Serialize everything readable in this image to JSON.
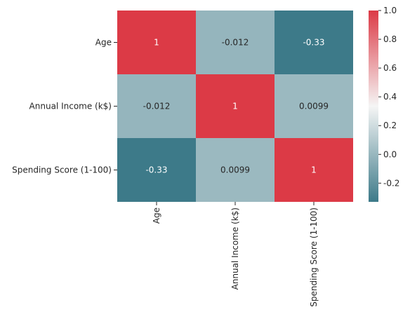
{
  "chart_data": {
    "type": "heatmap",
    "title": "",
    "rows": [
      "Age",
      "Annual Income (k$)",
      "Spending Score (1-100)"
    ],
    "columns": [
      "Age",
      "Annual Income (k$)",
      "Spending Score (1-100)"
    ],
    "values": [
      [
        1,
        -0.012,
        -0.33
      ],
      [
        -0.012,
        1,
        0.0099
      ],
      [
        -0.33,
        0.0099,
        1
      ]
    ],
    "cell_labels": [
      [
        "1",
        "-0.012",
        "-0.33"
      ],
      [
        "-0.012",
        "1",
        "0.0099"
      ],
      [
        "-0.33",
        "0.0099",
        "1"
      ]
    ],
    "colorbar": {
      "range": [
        -0.33,
        1
      ],
      "ticks": [
        -0.2,
        0.0,
        0.2,
        0.4,
        0.6,
        0.8,
        1.0
      ],
      "tick_labels": [
        "-0.2",
        "0.0",
        "0.2",
        "0.4",
        "0.6",
        "0.8",
        "1.0"
      ]
    },
    "colormap": {
      "type": "diverging",
      "low_color": "#3d7a89",
      "mid_color": "#f5f5f5",
      "high_color": "#dc3a46"
    },
    "x_tick_rotation": "vertical"
  }
}
